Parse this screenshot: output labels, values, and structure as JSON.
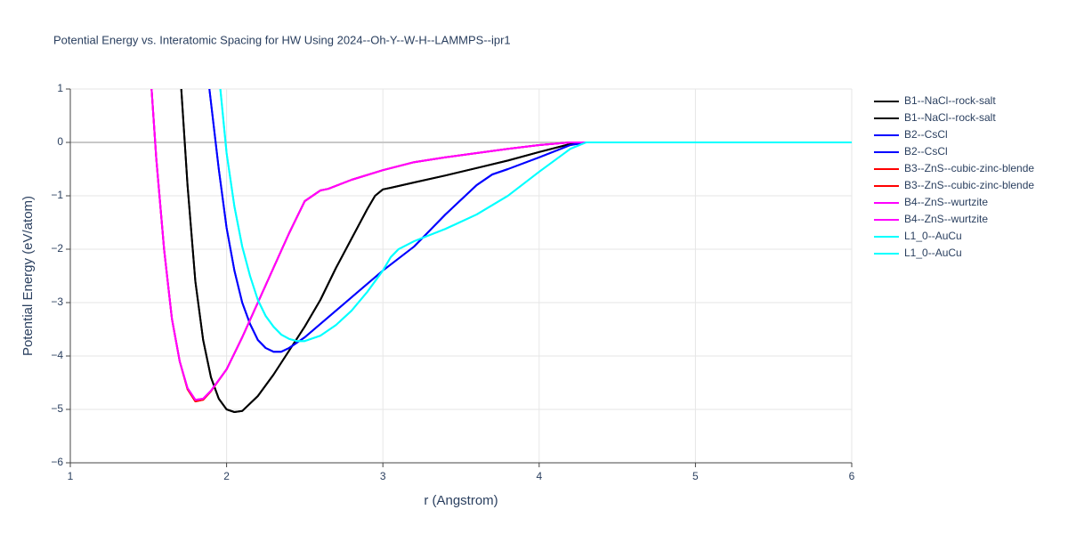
{
  "chart_data": {
    "type": "line",
    "title": "Potential Energy vs. Interatomic Spacing for HW Using 2024--Oh-Y--W-H--LAMMPS--ipr1",
    "x_label": "r (Angstrom)",
    "y_label": "Potential Energy (eV/atom)",
    "xlim": [
      1,
      6
    ],
    "ylim": [
      -6,
      1
    ],
    "xticks": [
      1,
      2,
      3,
      4,
      5,
      6
    ],
    "yticks": [
      1,
      0,
      {
        "value": -1,
        "label": "−1"
      },
      {
        "value": -2,
        "label": "−2"
      },
      {
        "value": -3,
        "label": "−3"
      },
      {
        "value": -4,
        "label": "−4"
      },
      {
        "value": -5,
        "label": "−5"
      },
      {
        "value": -6,
        "label": "−6"
      }
    ],
    "grid": true,
    "legend": "right",
    "series": [
      {
        "name": "B1--NaCl--rock-salt",
        "color": "#000000",
        "x": [
          1.71,
          1.75,
          1.8,
          1.85,
          1.9,
          1.95,
          2.0,
          2.05,
          2.1,
          2.2,
          2.3,
          2.4,
          2.5,
          2.6,
          2.7,
          2.8,
          2.9,
          2.95,
          3.0,
          3.05,
          3.2,
          3.4,
          3.6,
          3.8,
          4.0,
          4.2,
          4.3,
          4.5,
          5,
          5.5,
          6
        ],
        "values": [
          1,
          -0.8,
          -2.6,
          -3.7,
          -4.4,
          -4.8,
          -5.0,
          -5.05,
          -5.03,
          -4.75,
          -4.35,
          -3.9,
          -3.45,
          -2.95,
          -2.35,
          -1.8,
          -1.25,
          -1.0,
          -0.88,
          -0.85,
          -0.75,
          -0.62,
          -0.48,
          -0.34,
          -0.18,
          -0.03,
          0,
          0,
          0,
          0,
          0
        ]
      },
      {
        "name": "B1--NaCl--rock-salt",
        "color": "#000000",
        "x": [
          1.71,
          1.75,
          1.8,
          1.85,
          1.9,
          1.95,
          2.0,
          2.05,
          2.1,
          2.2,
          2.3,
          2.4,
          2.5,
          2.6,
          2.7,
          2.8,
          2.9,
          2.95,
          3.0,
          3.05,
          3.2,
          3.4,
          3.6,
          3.8,
          4.0,
          4.2,
          4.3,
          4.5,
          5,
          5.5,
          6
        ],
        "values": [
          1,
          -0.8,
          -2.6,
          -3.7,
          -4.4,
          -4.8,
          -5.0,
          -5.05,
          -5.03,
          -4.75,
          -4.35,
          -3.9,
          -3.45,
          -2.95,
          -2.35,
          -1.8,
          -1.25,
          -1.0,
          -0.88,
          -0.85,
          -0.75,
          -0.62,
          -0.48,
          -0.34,
          -0.18,
          -0.03,
          0,
          0,
          0,
          0,
          0
        ]
      },
      {
        "name": "B2--CsCl",
        "color": "#0000ff",
        "x": [
          1.89,
          1.95,
          2.0,
          2.05,
          2.1,
          2.15,
          2.2,
          2.25,
          2.3,
          2.35,
          2.4,
          2.5,
          2.6,
          2.8,
          3.0,
          3.2,
          3.4,
          3.6,
          3.7,
          3.8,
          4.0,
          4.2,
          4.3,
          4.5,
          5,
          5.5,
          6
        ],
        "values": [
          1,
          -0.5,
          -1.6,
          -2.4,
          -3.0,
          -3.4,
          -3.7,
          -3.85,
          -3.92,
          -3.92,
          -3.85,
          -3.65,
          -3.4,
          -2.9,
          -2.4,
          -1.95,
          -1.35,
          -0.8,
          -0.6,
          -0.5,
          -0.28,
          -0.05,
          0,
          0,
          0,
          0,
          0
        ]
      },
      {
        "name": "B2--CsCl",
        "color": "#0000ff",
        "x": [
          1.89,
          1.95,
          2.0,
          2.05,
          2.1,
          2.15,
          2.2,
          2.25,
          2.3,
          2.35,
          2.4,
          2.5,
          2.6,
          2.8,
          3.0,
          3.2,
          3.4,
          3.6,
          3.7,
          3.8,
          4.0,
          4.2,
          4.3,
          4.5,
          5,
          5.5,
          6
        ],
        "values": [
          1,
          -0.5,
          -1.6,
          -2.4,
          -3.0,
          -3.4,
          -3.7,
          -3.85,
          -3.92,
          -3.92,
          -3.85,
          -3.65,
          -3.4,
          -2.9,
          -2.4,
          -1.95,
          -1.35,
          -0.8,
          -0.6,
          -0.5,
          -0.28,
          -0.05,
          0,
          0,
          0,
          0,
          0
        ]
      },
      {
        "name": "B3--ZnS--cubic-zinc-blende",
        "color": "#ff0000",
        "x": [
          1.52,
          1.55,
          1.6,
          1.65,
          1.7,
          1.75,
          1.8,
          1.85,
          1.9,
          2.0,
          2.1,
          2.2,
          2.3,
          2.4,
          2.5,
          2.6,
          2.65,
          2.8,
          3.0,
          3.2,
          3.4,
          3.6,
          3.8,
          4.0,
          4.2,
          4.3,
          4.5,
          5,
          5.5,
          6
        ],
        "values": [
          1,
          -0.3,
          -2.0,
          -3.3,
          -4.1,
          -4.62,
          -4.85,
          -4.82,
          -4.66,
          -4.25,
          -3.65,
          -3.0,
          -2.35,
          -1.7,
          -1.1,
          -0.9,
          -0.87,
          -0.7,
          -0.52,
          -0.37,
          -0.28,
          -0.2,
          -0.12,
          -0.05,
          0,
          0,
          0,
          0,
          0,
          0
        ]
      },
      {
        "name": "B3--ZnS--cubic-zinc-blende",
        "color": "#ff0000",
        "x": [
          1.52,
          1.55,
          1.6,
          1.65,
          1.7,
          1.75,
          1.8,
          1.85,
          1.9,
          2.0,
          2.1,
          2.2,
          2.3,
          2.4,
          2.5,
          2.6,
          2.65,
          2.8,
          3.0,
          3.2,
          3.4,
          3.6,
          3.8,
          4.0,
          4.2,
          4.3,
          4.5,
          5,
          5.5,
          6
        ],
        "values": [
          1,
          -0.3,
          -2.0,
          -3.3,
          -4.1,
          -4.62,
          -4.85,
          -4.82,
          -4.66,
          -4.25,
          -3.65,
          -3.0,
          -2.35,
          -1.7,
          -1.1,
          -0.9,
          -0.87,
          -0.7,
          -0.52,
          -0.37,
          -0.28,
          -0.2,
          -0.12,
          -0.05,
          0,
          0,
          0,
          0,
          0,
          0
        ]
      },
      {
        "name": "B4--ZnS--wurtzite",
        "color": "#ff00ff",
        "x": [
          1.52,
          1.55,
          1.6,
          1.65,
          1.7,
          1.75,
          1.8,
          1.85,
          1.9,
          2.0,
          2.1,
          2.2,
          2.3,
          2.4,
          2.5,
          2.6,
          2.65,
          2.8,
          3.0,
          3.2,
          3.4,
          3.6,
          3.8,
          4.0,
          4.2,
          4.3,
          4.5,
          5,
          5.5,
          6
        ],
        "values": [
          1,
          -0.3,
          -2.0,
          -3.3,
          -4.1,
          -4.6,
          -4.82,
          -4.8,
          -4.65,
          -4.25,
          -3.65,
          -3.0,
          -2.35,
          -1.7,
          -1.1,
          -0.9,
          -0.87,
          -0.7,
          -0.52,
          -0.37,
          -0.28,
          -0.2,
          -0.12,
          -0.05,
          0,
          0,
          0,
          0,
          0,
          0
        ]
      },
      {
        "name": "B4--ZnS--wurtzite",
        "color": "#ff00ff",
        "x": [
          1.52,
          1.55,
          1.6,
          1.65,
          1.7,
          1.75,
          1.8,
          1.85,
          1.9,
          2.0,
          2.1,
          2.2,
          2.3,
          2.4,
          2.5,
          2.6,
          2.65,
          2.8,
          3.0,
          3.2,
          3.4,
          3.6,
          3.8,
          4.0,
          4.2,
          4.3,
          4.5,
          5,
          5.5,
          6
        ],
        "values": [
          1,
          -0.3,
          -2.0,
          -3.3,
          -4.1,
          -4.6,
          -4.82,
          -4.8,
          -4.65,
          -4.25,
          -3.65,
          -3.0,
          -2.35,
          -1.7,
          -1.1,
          -0.9,
          -0.87,
          -0.7,
          -0.52,
          -0.37,
          -0.28,
          -0.2,
          -0.12,
          -0.05,
          0,
          0,
          0,
          0,
          0,
          0
        ]
      },
      {
        "name": "L1_0--AuCu",
        "color": "#00ffff",
        "x": [
          1.96,
          2.0,
          2.05,
          2.1,
          2.15,
          2.2,
          2.25,
          2.3,
          2.35,
          2.4,
          2.45,
          2.5,
          2.6,
          2.7,
          2.8,
          2.9,
          3.0,
          3.05,
          3.1,
          3.2,
          3.4,
          3.6,
          3.8,
          4.0,
          4.2,
          4.3,
          4.5,
          5,
          5.5,
          6
        ],
        "values": [
          1,
          -0.2,
          -1.2,
          -1.95,
          -2.5,
          -2.95,
          -3.25,
          -3.45,
          -3.6,
          -3.68,
          -3.72,
          -3.72,
          -3.62,
          -3.42,
          -3.15,
          -2.8,
          -2.4,
          -2.15,
          -2.0,
          -1.85,
          -1.62,
          -1.35,
          -1.0,
          -0.55,
          -0.12,
          0,
          0,
          0,
          0,
          0
        ]
      },
      {
        "name": "L1_0--AuCu",
        "color": "#00ffff",
        "x": [
          1.96,
          2.0,
          2.05,
          2.1,
          2.15,
          2.2,
          2.25,
          2.3,
          2.35,
          2.4,
          2.45,
          2.5,
          2.6,
          2.7,
          2.8,
          2.9,
          3.0,
          3.05,
          3.1,
          3.2,
          3.4,
          3.6,
          3.8,
          4.0,
          4.2,
          4.3,
          4.5,
          5,
          5.5,
          6
        ],
        "values": [
          1,
          -0.2,
          -1.2,
          -1.95,
          -2.5,
          -2.95,
          -3.25,
          -3.45,
          -3.6,
          -3.68,
          -3.72,
          -3.72,
          -3.62,
          -3.42,
          -3.15,
          -2.8,
          -2.4,
          -2.15,
          -2.0,
          -1.85,
          -1.62,
          -1.35,
          -1.0,
          -0.55,
          -0.12,
          0,
          0,
          0,
          0,
          0
        ]
      }
    ]
  }
}
